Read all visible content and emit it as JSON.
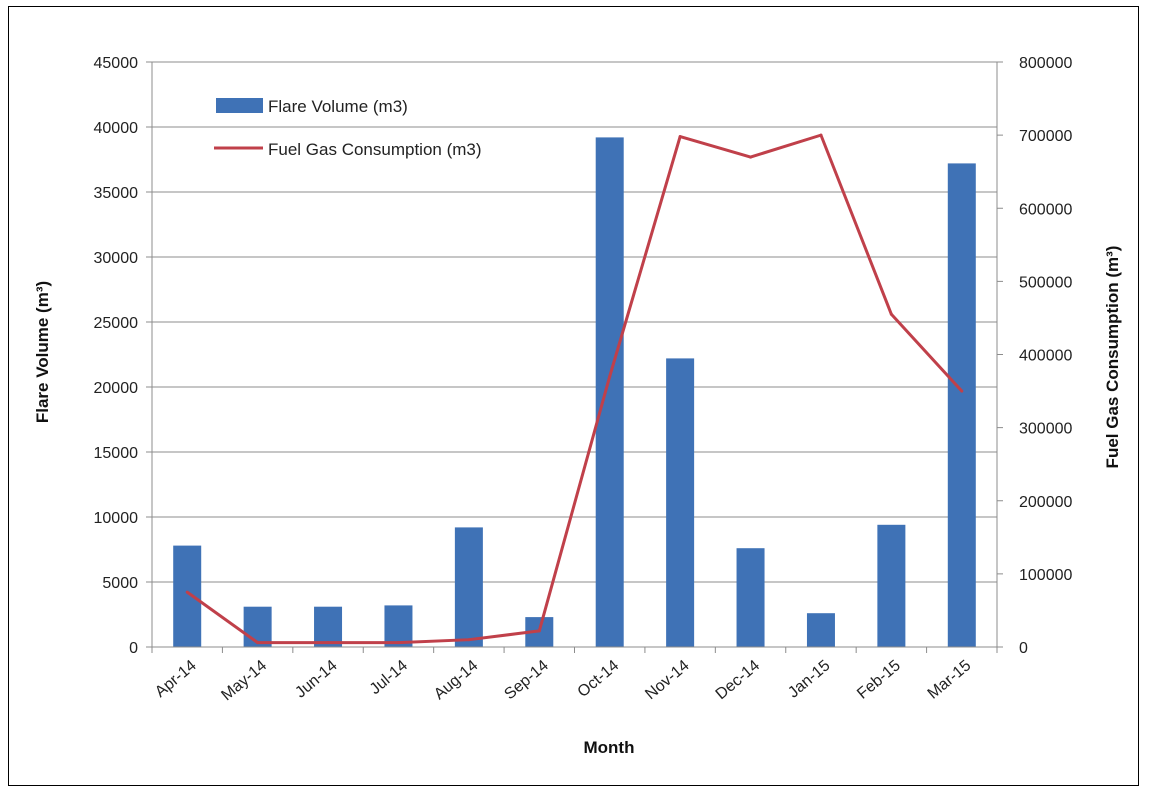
{
  "chart_data": {
    "type": "bar",
    "categories": [
      "Apr-14",
      "May-14",
      "Jun-14",
      "Jul-14",
      "Aug-14",
      "Sep-14",
      "Oct-14",
      "Nov-14",
      "Dec-14",
      "Jan-15",
      "Feb-15",
      "Mar-15"
    ],
    "series": [
      {
        "name": "Flare Volume (m3)",
        "type": "bar",
        "axis": "left",
        "color": "#3f72b6",
        "values": [
          7800,
          3100,
          3100,
          3200,
          9200,
          2300,
          39200,
          22200,
          7600,
          2600,
          9400,
          37200
        ]
      },
      {
        "name": "Fuel Gas Consumption (m3)",
        "type": "line",
        "axis": "right",
        "color": "#c0404a",
        "values": [
          75000,
          6000,
          6000,
          6000,
          10000,
          22000,
          370000,
          698000,
          670000,
          700000,
          455000,
          350000
        ]
      }
    ],
    "xlabel": "Month",
    "ylabel": "Flare Volume (m³)",
    "y2label": "Fuel Gas Consumption (m³)",
    "ylim": [
      0,
      45000
    ],
    "y2lim": [
      0,
      800000
    ],
    "yticks": [
      "0",
      "5000",
      "10000",
      "15000",
      "20000",
      "25000",
      "30000",
      "35000",
      "40000",
      "45000"
    ],
    "y2ticks": [
      "0",
      "100000",
      "200000",
      "300000",
      "400000",
      "500000",
      "600000",
      "700000",
      "800000"
    ],
    "grid": true,
    "legend": "top-left"
  }
}
